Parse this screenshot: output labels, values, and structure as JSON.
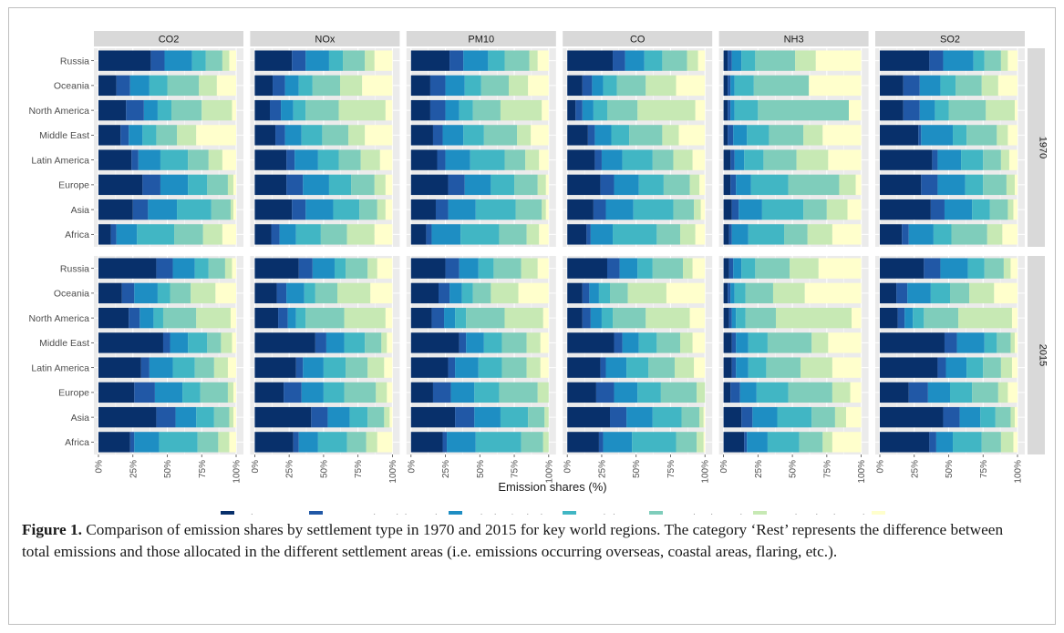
{
  "figure": {
    "label": "Figure 1.",
    "caption": "Comparison of emission shares by settlement type in 1970 and 2015 for key world regions. The category ‘Rest’ represents the difference between total emissions and those allocated in the different settlement areas (i.e. emissions occurring overseas, coastal areas, flaring, etc.)."
  },
  "colors": {
    "categories": [
      "#08306b",
      "#2158a6",
      "#1e8ec3",
      "#41b6c4",
      "#7fcdbb",
      "#c7e9b4",
      "#ffffcc"
    ],
    "strip_bg": "#d9d9d9",
    "panel_bg": "#ebebeb",
    "grid": "#ffffff"
  },
  "chart_data": {
    "type": "bar",
    "orientation": "horizontal",
    "stacked": true,
    "xlabel": "Emission shares (%)",
    "ylabel": "",
    "xlim": [
      0,
      100
    ],
    "xticks": [
      "0%",
      "25%",
      "50%",
      "75%",
      "100%"
    ],
    "pollutants": [
      "CO2",
      "NOx",
      "PM10",
      "CO",
      "NH3",
      "SO2"
    ],
    "years": [
      "1970",
      "2015"
    ],
    "regions": [
      "Russia",
      "Oceania",
      "North America",
      "Middle East",
      "Latin America",
      "Europe",
      "Asia",
      "Africa"
    ],
    "categories": [
      "Urban centres",
      "Dense and semi-dense cluster",
      "Suburban/peri-urban",
      "Rural cluster",
      "Low-density rural",
      "Very low-density rural",
      "Rest"
    ],
    "legend_position": "bottom",
    "data": {
      "1970": {
        "CO2": {
          "Russia": [
            38,
            10,
            20,
            10,
            12,
            5,
            5
          ],
          "Oceania": [
            13,
            10,
            14,
            13,
            23,
            13,
            14
          ],
          "North America": [
            20,
            13,
            10,
            10,
            22,
            22,
            3
          ],
          "Middle East": [
            16,
            6,
            10,
            10,
            15,
            14,
            29
          ],
          "Latin America": [
            24,
            5,
            16,
            20,
            15,
            10,
            10
          ],
          "Europe": [
            32,
            13,
            20,
            14,
            15,
            4,
            2
          ],
          "Asia": [
            25,
            11,
            21,
            25,
            14,
            2,
            2
          ],
          "Africa": [
            9,
            4,
            15,
            27,
            21,
            14,
            10
          ]
        },
        "NOx": {
          "Russia": [
            27,
            10,
            17,
            10,
            16,
            7,
            13
          ],
          "Oceania": [
            13,
            9,
            10,
            10,
            20,
            16,
            22
          ],
          "North America": [
            11,
            8,
            9,
            9,
            24,
            34,
            5
          ],
          "Middle East": [
            15,
            7,
            12,
            15,
            19,
            12,
            20
          ],
          "Latin America": [
            23,
            6,
            17,
            15,
            16,
            14,
            9
          ],
          "Europe": [
            23,
            12,
            19,
            16,
            17,
            8,
            5
          ],
          "Asia": [
            27,
            10,
            20,
            19,
            13,
            6,
            5
          ],
          "Africa": [
            12,
            6,
            12,
            18,
            19,
            20,
            13
          ]
        },
        "PM10": {
          "Russia": [
            28,
            10,
            18,
            12,
            18,
            6,
            8
          ],
          "Oceania": [
            14,
            11,
            14,
            12,
            20,
            14,
            15
          ],
          "North America": [
            14,
            11,
            10,
            10,
            20,
            30,
            5
          ],
          "Middle East": [
            16,
            7,
            15,
            15,
            24,
            10,
            13
          ],
          "Latin America": [
            19,
            6,
            18,
            25,
            15,
            10,
            7
          ],
          "Europe": [
            27,
            12,
            19,
            17,
            17,
            6,
            2
          ],
          "Asia": [
            18,
            9,
            20,
            29,
            19,
            3,
            2
          ],
          "Africa": [
            11,
            4,
            21,
            28,
            20,
            9,
            7
          ]
        },
        "CO": {
          "Russia": [
            33,
            9,
            14,
            13,
            18,
            8,
            5
          ],
          "Oceania": [
            11,
            7,
            8,
            10,
            21,
            22,
            21
          ],
          "North America": [
            6,
            5,
            8,
            10,
            22,
            42,
            7
          ],
          "Middle East": [
            15,
            5,
            12,
            13,
            24,
            12,
            19
          ],
          "Latin America": [
            20,
            5,
            15,
            22,
            15,
            14,
            9
          ],
          "Europe": [
            24,
            10,
            18,
            18,
            19,
            7,
            4
          ],
          "Asia": [
            19,
            9,
            20,
            29,
            15,
            5,
            3
          ],
          "Africa": [
            14,
            3,
            16,
            32,
            17,
            11,
            7
          ]
        },
        "NH3": {
          "Russia": [
            3,
            3,
            7,
            10,
            29,
            15,
            33
          ],
          "Oceania": [
            3,
            2,
            3,
            14,
            40,
            0,
            38
          ],
          "North America": [
            3,
            2,
            3,
            17,
            66,
            0,
            9
          ],
          "Middle East": [
            3,
            4,
            10,
            16,
            25,
            14,
            28
          ],
          "Latin America": [
            5,
            3,
            7,
            14,
            24,
            23,
            24
          ],
          "Europe": [
            5,
            4,
            11,
            27,
            37,
            12,
            4
          ],
          "Asia": [
            6,
            5,
            17,
            30,
            17,
            15,
            10
          ],
          "Africa": [
            4,
            2,
            12,
            26,
            17,
            18,
            21
          ]
        },
        "SO2": {
          "Russia": [
            36,
            10,
            22,
            8,
            12,
            5,
            7
          ],
          "Oceania": [
            17,
            12,
            15,
            11,
            19,
            12,
            14
          ],
          "North America": [
            17,
            12,
            11,
            10,
            27,
            21,
            2
          ],
          "Middle East": [
            28,
            2,
            23,
            10,
            22,
            8,
            7
          ],
          "Latin America": [
            38,
            4,
            17,
            16,
            13,
            6,
            6
          ],
          "Europe": [
            30,
            12,
            20,
            13,
            17,
            6,
            2
          ],
          "Asia": [
            37,
            10,
            20,
            13,
            13,
            4,
            3
          ],
          "Africa": [
            16,
            5,
            18,
            13,
            26,
            11,
            11
          ]
        }
      },
      "2015": {
        "CO2": {
          "Russia": [
            42,
            12,
            16,
            10,
            12,
            5,
            3
          ],
          "Oceania": [
            17,
            9,
            17,
            9,
            15,
            18,
            15
          ],
          "North America": [
            22,
            8,
            10,
            7,
            24,
            25,
            4
          ],
          "Middle East": [
            47,
            5,
            13,
            14,
            10,
            8,
            3
          ],
          "Latin America": [
            31,
            6,
            17,
            16,
            14,
            10,
            6
          ],
          "Europe": [
            26,
            15,
            20,
            13,
            20,
            4,
            2
          ],
          "Asia": [
            42,
            14,
            15,
            13,
            11,
            3,
            2
          ],
          "Africa": [
            23,
            3,
            18,
            28,
            15,
            8,
            5
          ]
        },
        "NOx": {
          "Russia": [
            32,
            10,
            16,
            8,
            16,
            7,
            11
          ],
          "Oceania": [
            16,
            7,
            13,
            8,
            16,
            24,
            16
          ],
          "North America": [
            17,
            7,
            6,
            7,
            28,
            30,
            5
          ],
          "Middle East": [
            44,
            8,
            13,
            15,
            12,
            4,
            4
          ],
          "Latin America": [
            30,
            5,
            15,
            16,
            16,
            12,
            6
          ],
          "Europe": [
            21,
            13,
            16,
            15,
            23,
            8,
            4
          ],
          "Asia": [
            41,
            12,
            16,
            13,
            12,
            4,
            2
          ],
          "Africa": [
            28,
            4,
            14,
            21,
            14,
            8,
            11
          ]
        },
        "PM10": {
          "Russia": [
            25,
            10,
            14,
            11,
            20,
            12,
            8
          ],
          "Oceania": [
            20,
            8,
            9,
            8,
            13,
            20,
            22
          ],
          "North America": [
            15,
            9,
            8,
            8,
            28,
            28,
            4
          ],
          "Middle East": [
            35,
            5,
            13,
            13,
            18,
            10,
            6
          ],
          "Latin America": [
            27,
            5,
            17,
            17,
            18,
            10,
            6
          ],
          "Europe": [
            16,
            13,
            17,
            18,
            28,
            8,
            0
          ],
          "Asia": [
            32,
            14,
            19,
            20,
            12,
            3,
            0
          ],
          "Africa": [
            23,
            3,
            21,
            33,
            16,
            4,
            0
          ]
        },
        "CO": {
          "Russia": [
            29,
            9,
            13,
            11,
            22,
            7,
            9
          ],
          "Oceania": [
            11,
            5,
            7,
            8,
            13,
            28,
            28
          ],
          "North America": [
            11,
            6,
            8,
            8,
            24,
            32,
            11
          ],
          "Middle East": [
            34,
            6,
            12,
            13,
            17,
            9,
            9
          ],
          "Latin America": [
            24,
            4,
            15,
            16,
            19,
            14,
            8
          ],
          "Europe": [
            21,
            13,
            17,
            17,
            26,
            6,
            0
          ],
          "Asia": [
            31,
            12,
            19,
            21,
            13,
            3,
            1
          ],
          "Africa": [
            23,
            3,
            21,
            32,
            15,
            5,
            1
          ]
        },
        "NH3": {
          "Russia": [
            4,
            3,
            6,
            10,
            25,
            21,
            31
          ],
          "Oceania": [
            3,
            2,
            3,
            8,
            20,
            23,
            41
          ],
          "North America": [
            4,
            2,
            3,
            7,
            22,
            55,
            7
          ],
          "Middle East": [
            6,
            3,
            9,
            14,
            32,
            12,
            24
          ],
          "Latin America": [
            6,
            3,
            9,
            13,
            25,
            23,
            21
          ],
          "Europe": [
            5,
            7,
            12,
            23,
            32,
            13,
            8
          ],
          "Asia": [
            13,
            8,
            18,
            25,
            17,
            8,
            11
          ],
          "Africa": [
            15,
            2,
            15,
            23,
            17,
            7,
            21
          ]
        },
        "SO2": {
          "Russia": [
            32,
            12,
            20,
            12,
            14,
            5,
            5
          ],
          "Oceania": [
            12,
            8,
            17,
            14,
            14,
            18,
            17
          ],
          "North America": [
            13,
            5,
            6,
            8,
            25,
            39,
            4
          ],
          "Middle East": [
            47,
            9,
            20,
            9,
            10,
            3,
            2
          ],
          "Latin America": [
            42,
            6,
            15,
            12,
            13,
            8,
            4
          ],
          "Europe": [
            21,
            14,
            16,
            16,
            19,
            7,
            7
          ],
          "Asia": [
            46,
            12,
            15,
            11,
            11,
            3,
            2
          ],
          "Africa": [
            36,
            5,
            12,
            21,
            14,
            9,
            3
          ]
        }
      }
    }
  }
}
